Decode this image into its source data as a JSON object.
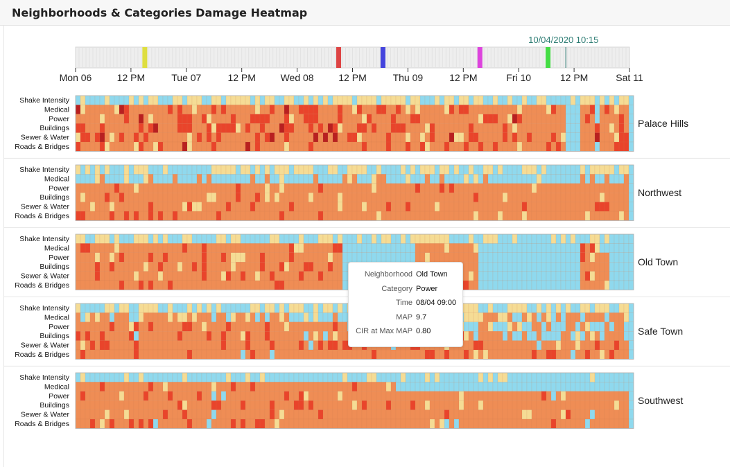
{
  "header": {
    "title": "Neighborhoods & Categories Damage Heatmap"
  },
  "timeline": {
    "current_time": "10/04/2020 10:15",
    "ticks": [
      "Mon 06",
      "12 PM",
      "Tue 07",
      "12 PM",
      "Wed 08",
      "12 PM",
      "Thu 09",
      "12 PM",
      "Fri 10",
      "12 PM",
      "Sat 11"
    ],
    "events": [
      {
        "t": 0.125,
        "color": "#dede40"
      },
      {
        "t": 0.475,
        "color": "#dd4444"
      },
      {
        "t": 0.555,
        "color": "#4444dd"
      },
      {
        "t": 0.73,
        "color": "#dd44dd"
      },
      {
        "t": 0.853,
        "color": "#44dd44"
      }
    ],
    "cursor_t": 0.885
  },
  "categories": [
    "Shake Intensity",
    "Medical",
    "Power",
    "Buildings",
    "Sewer & Water",
    "Roads & Bridges"
  ],
  "neighborhoods": [
    "Palace Hills",
    "Northwest",
    "Old Town",
    "Safe Town",
    "Southwest"
  ],
  "colors": {
    "missing": "#8fd9ee",
    "low": "#f5dc95",
    "medium": "#ef8d55",
    "high": "#e9442b",
    "severe": "#b82020"
  },
  "tooltip": {
    "rows": [
      {
        "label": "Neighborhood",
        "value": "Old Town"
      },
      {
        "label": "Category",
        "value": "Power"
      },
      {
        "label": "Time",
        "value": "08/04 09:00"
      },
      {
        "label": "MAP",
        "value": "9.7"
      },
      {
        "label": "CIR at Max MAP",
        "value": "0.80"
      }
    ]
  }
}
